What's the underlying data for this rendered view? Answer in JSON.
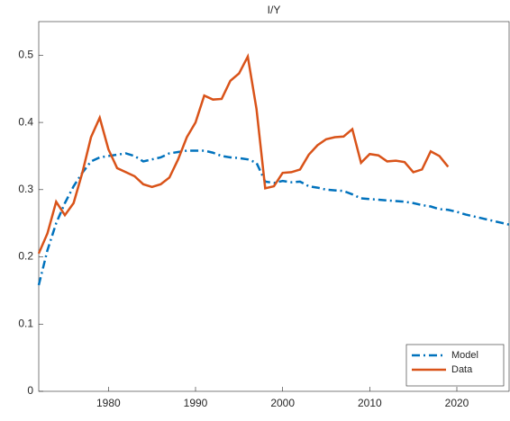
{
  "chart_data": {
    "type": "line",
    "title": "I/Y",
    "x": [
      1972,
      1973,
      1974,
      1975,
      1976,
      1977,
      1978,
      1979,
      1980,
      1981,
      1982,
      1983,
      1984,
      1985,
      1986,
      1987,
      1988,
      1989,
      1990,
      1991,
      1992,
      1993,
      1994,
      1995,
      1996,
      1997,
      1998,
      1999,
      2000,
      2001,
      2002,
      2003,
      2004,
      2005,
      2006,
      2007,
      2008,
      2009,
      2010,
      2011,
      2012,
      2013,
      2014,
      2015,
      2016,
      2017,
      2018,
      2019,
      2020,
      2021,
      2022,
      2023,
      2024,
      2025,
      2026
    ],
    "series": [
      {
        "name": "Model",
        "color": "#0072BD",
        "dash": "dashdot",
        "values": [
          0.158,
          0.21,
          0.25,
          0.28,
          0.305,
          0.325,
          0.342,
          0.348,
          0.35,
          0.352,
          0.354,
          0.35,
          0.342,
          0.345,
          0.348,
          0.354,
          0.356,
          0.358,
          0.358,
          0.358,
          0.355,
          0.35,
          0.348,
          0.347,
          0.345,
          0.34,
          0.312,
          0.31,
          0.313,
          0.311,
          0.312,
          0.305,
          0.303,
          0.3,
          0.299,
          0.298,
          0.293,
          0.287,
          0.286,
          0.285,
          0.284,
          0.283,
          0.282,
          0.28,
          0.277,
          0.275,
          0.271,
          0.27,
          0.267,
          0.263,
          0.26,
          0.257,
          0.254,
          0.251,
          0.248
        ]
      },
      {
        "name": "Data",
        "color": "#D95319",
        "dash": "solid",
        "values": [
          0.205,
          0.235,
          0.282,
          0.262,
          0.28,
          0.325,
          0.378,
          0.407,
          0.36,
          0.332,
          0.326,
          0.32,
          0.308,
          0.304,
          0.308,
          0.318,
          0.345,
          0.378,
          0.4,
          0.44,
          0.434,
          0.435,
          0.462,
          0.473,
          0.498,
          0.42,
          0.302,
          0.305,
          0.325,
          0.326,
          0.33,
          0.352,
          0.366,
          0.375,
          0.378,
          0.379,
          0.39,
          0.34,
          0.353,
          0.351,
          0.342,
          0.343,
          0.341,
          0.326,
          0.33,
          0.357,
          0.35,
          0.334,
          null,
          null,
          null,
          null,
          null,
          null,
          null
        ]
      }
    ],
    "xlim": [
      1972,
      2026
    ],
    "xticks": [
      1980,
      1990,
      2000,
      2010,
      2020
    ],
    "ylim": [
      0,
      0.55
    ],
    "yticks": [
      0,
      0.1,
      0.2,
      0.3,
      0.4,
      0.5
    ],
    "legend": "lower right",
    "grid": false
  }
}
